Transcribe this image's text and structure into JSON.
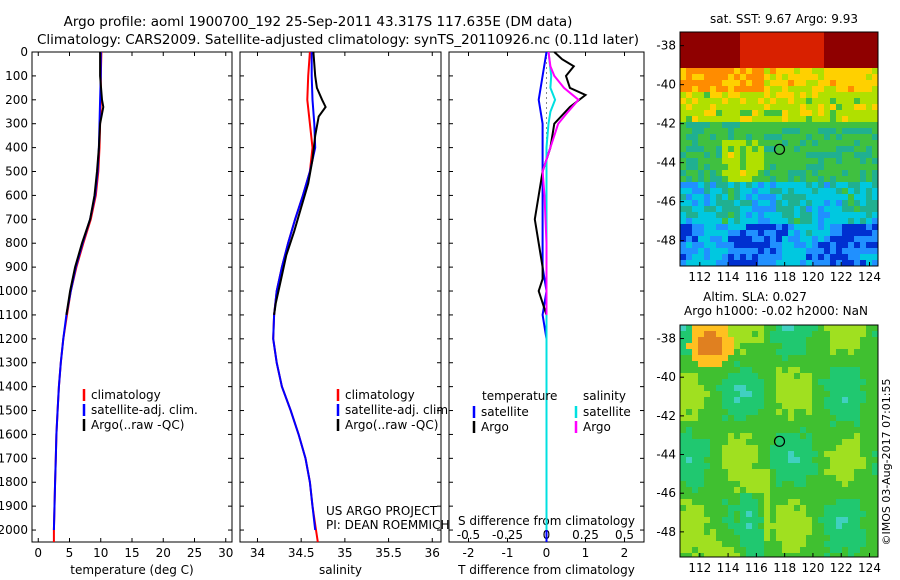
{
  "header": {
    "line1": "Argo profile: aoml 1900700_192 25-Sep-2011 43.317S 117.635E (DM data)",
    "line2": "Climatology: CARS2009. Satellite-adjusted climatology: synTS_20110926.nc (0.11d later)"
  },
  "credits": {
    "project": "US ARGO PROJECT",
    "pi": "PI: DEAN ROEMMICH",
    "stamp": "©IMOS 03-Aug-2017 07:01:55"
  },
  "maps": {
    "sst_title": "sat. SST: 9.67 Argo: 9.93",
    "sla_title1": "Altim. SLA: 0.027",
    "sla_title2": "Argo h1000: -0.02 h2000: NaN",
    "lat_ticks": [
      -38,
      -40,
      -42,
      -44,
      -46,
      -48
    ],
    "lon_ticks": [
      112,
      114,
      116,
      118,
      120,
      122,
      124
    ],
    "float_lon": 117.635,
    "float_lat": -43.317,
    "sst_colors": [
      "#8f0000",
      "#d82000",
      "#ff8c00",
      "#ffd000",
      "#b0e000",
      "#40c040",
      "#20b090",
      "#00c8e0",
      "#2090ff",
      "#0030d0"
    ],
    "sla_colors": [
      "#e08020",
      "#ffc020",
      "#e8e820",
      "#a0e020",
      "#40c030",
      "#20c870",
      "#40d0c0",
      "#40b0ff",
      "#2050e0"
    ]
  },
  "colors": {
    "climatology": "#ff0000",
    "satellite": "#0000ff",
    "argo": "#000000",
    "sal_satellite": "#00e0e0",
    "sal_argo": "#ff00ff"
  },
  "chart_data": [
    {
      "type": "line",
      "xlabel": "temperature (deg C)",
      "xlim": [
        -1,
        31
      ],
      "xticks": [
        0,
        5,
        10,
        15,
        20,
        25,
        30
      ],
      "ylim": [
        0,
        2050
      ],
      "yticks": [
        0,
        100,
        200,
        300,
        400,
        500,
        600,
        700,
        800,
        900,
        1000,
        1100,
        1200,
        1300,
        1400,
        1500,
        1600,
        1700,
        1800,
        1900,
        2000
      ],
      "legend": [
        "climatology",
        "satellite-adj. clim.",
        "Argo(..raw -QC)"
      ],
      "series": [
        {
          "name": "climatology",
          "points": [
            [
              10.1,
              0
            ],
            [
              10.0,
              100
            ],
            [
              10.0,
              200
            ],
            [
              9.9,
              300
            ],
            [
              9.8,
              400
            ],
            [
              9.6,
              500
            ],
            [
              9.2,
              600
            ],
            [
              8.4,
              700
            ],
            [
              7.2,
              800
            ],
            [
              6.1,
              900
            ],
            [
              5.2,
              1000
            ],
            [
              4.6,
              1100
            ],
            [
              4.0,
              1200
            ],
            [
              3.6,
              1300
            ],
            [
              3.3,
              1400
            ],
            [
              3.1,
              1500
            ],
            [
              2.9,
              1600
            ],
            [
              2.8,
              1700
            ],
            [
              2.7,
              1800
            ],
            [
              2.6,
              1900
            ],
            [
              2.5,
              2000
            ],
            [
              2.5,
              2050
            ]
          ]
        },
        {
          "name": "satellite-adj. clim.",
          "points": [
            [
              10.0,
              0
            ],
            [
              10.0,
              100
            ],
            [
              9.9,
              200
            ],
            [
              9.8,
              300
            ],
            [
              9.7,
              400
            ],
            [
              9.5,
              500
            ],
            [
              9.1,
              600
            ],
            [
              8.3,
              700
            ],
            [
              7.1,
              800
            ],
            [
              6.0,
              900
            ],
            [
              5.2,
              1000
            ],
            [
              4.5,
              1100
            ],
            [
              4.0,
              1200
            ],
            [
              3.6,
              1300
            ],
            [
              3.3,
              1400
            ],
            [
              3.1,
              1500
            ],
            [
              2.9,
              1600
            ],
            [
              2.8,
              1700
            ],
            [
              2.7,
              1800
            ],
            [
              2.6,
              1900
            ],
            [
              2.5,
              2000
            ]
          ]
        },
        {
          "name": "Argo(..raw -QC)",
          "points": [
            [
              9.9,
              0
            ],
            [
              9.9,
              100
            ],
            [
              10.2,
              200
            ],
            [
              10.4,
              230
            ],
            [
              9.9,
              300
            ],
            [
              9.7,
              400
            ],
            [
              9.4,
              500
            ],
            [
              9.0,
              600
            ],
            [
              8.3,
              700
            ],
            [
              7.0,
              800
            ],
            [
              5.9,
              900
            ],
            [
              5.1,
              1000
            ],
            [
              4.5,
              1100
            ]
          ]
        }
      ]
    },
    {
      "type": "line",
      "xlabel": "salinity",
      "xlim": [
        33.8,
        36.1
      ],
      "xticks": [
        34,
        34.5,
        35,
        35.5,
        36
      ],
      "ylim": [
        0,
        2050
      ],
      "legend": [
        "climatology",
        "satellite-adj. clim.",
        "Argo(..raw -QC)"
      ],
      "series": [
        {
          "name": "climatology",
          "points": [
            [
              34.6,
              0
            ],
            [
              34.58,
              100
            ],
            [
              34.57,
              200
            ],
            [
              34.6,
              300
            ],
            [
              34.63,
              400
            ],
            [
              34.6,
              500
            ],
            [
              34.52,
              600
            ],
            [
              34.43,
              700
            ],
            [
              34.35,
              800
            ],
            [
              34.28,
              900
            ],
            [
              34.22,
              1000
            ],
            [
              34.19,
              1100
            ],
            [
              34.18,
              1200
            ],
            [
              34.22,
              1300
            ],
            [
              34.28,
              1400
            ],
            [
              34.38,
              1500
            ],
            [
              34.47,
              1600
            ],
            [
              34.55,
              1700
            ],
            [
              34.6,
              1800
            ],
            [
              34.63,
              1900
            ],
            [
              34.67,
              2000
            ],
            [
              34.69,
              2050
            ]
          ]
        },
        {
          "name": "satellite-adj. clim.",
          "points": [
            [
              34.62,
              0
            ],
            [
              34.62,
              100
            ],
            [
              34.63,
              200
            ],
            [
              34.65,
              300
            ],
            [
              34.66,
              400
            ],
            [
              34.6,
              500
            ],
            [
              34.52,
              600
            ],
            [
              34.43,
              700
            ],
            [
              34.35,
              800
            ],
            [
              34.28,
              900
            ],
            [
              34.22,
              1000
            ],
            [
              34.19,
              1100
            ],
            [
              34.18,
              1200
            ],
            [
              34.22,
              1300
            ],
            [
              34.28,
              1400
            ],
            [
              34.38,
              1500
            ],
            [
              34.47,
              1600
            ],
            [
              34.55,
              1700
            ],
            [
              34.6,
              1800
            ],
            [
              34.63,
              1900
            ],
            [
              34.66,
              2000
            ]
          ]
        },
        {
          "name": "Argo(..raw -QC)",
          "points": [
            [
              34.64,
              0
            ],
            [
              34.66,
              100
            ],
            [
              34.68,
              150
            ],
            [
              34.74,
              200
            ],
            [
              34.78,
              230
            ],
            [
              34.7,
              270
            ],
            [
              34.66,
              350
            ],
            [
              34.63,
              450
            ],
            [
              34.58,
              550
            ],
            [
              34.5,
              650
            ],
            [
              34.42,
              750
            ],
            [
              34.33,
              850
            ],
            [
              34.27,
              950
            ],
            [
              34.21,
              1050
            ],
            [
              34.19,
              1100
            ]
          ]
        }
      ]
    },
    {
      "type": "line",
      "xlabel": "T difference from climatology",
      "xlabel2": "S difference from climatology",
      "xlim": [
        -2.5,
        2.5
      ],
      "xticks": [
        -2,
        -1,
        0,
        1,
        2
      ],
      "xticks2_labels": [
        "-0.5",
        "-0.25",
        "0",
        "0.25",
        "0.5"
      ],
      "ylim": [
        0,
        2050
      ],
      "legend_headers": [
        "temperature",
        "salinity"
      ],
      "legend": [
        "satellite",
        "Argo",
        "satellite",
        "Argo"
      ],
      "series": [
        {
          "name": "temperature satellite",
          "points": [
            [
              0.0,
              0
            ],
            [
              -0.1,
              100
            ],
            [
              -0.2,
              200
            ],
            [
              -0.1,
              300
            ],
            [
              -0.1,
              400
            ],
            [
              -0.1,
              500
            ],
            [
              -0.1,
              600
            ],
            [
              -0.1,
              700
            ],
            [
              -0.1,
              800
            ],
            [
              -0.1,
              900
            ],
            [
              0.0,
              1000
            ],
            [
              -0.1,
              1100
            ],
            [
              0.0,
              1200
            ],
            [
              0.0,
              1400
            ],
            [
              0.0,
              1700
            ],
            [
              0.0,
              2000
            ],
            [
              0.0,
              2050
            ]
          ]
        },
        {
          "name": "temperature Argo",
          "points": [
            [
              0.2,
              0
            ],
            [
              0.4,
              30
            ],
            [
              0.7,
              60
            ],
            [
              0.5,
              100
            ],
            [
              0.6,
              150
            ],
            [
              1.0,
              180
            ],
            [
              0.6,
              230
            ],
            [
              0.2,
              300
            ],
            [
              0.1,
              400
            ],
            [
              -0.1,
              500
            ],
            [
              -0.2,
              600
            ],
            [
              -0.3,
              700
            ],
            [
              -0.2,
              800
            ],
            [
              -0.1,
              900
            ],
            [
              -0.1,
              950
            ],
            [
              -0.2,
              1000
            ],
            [
              0.0,
              1100
            ]
          ]
        },
        {
          "name": "salinity satellite",
          "points": [
            [
              0.05,
              0
            ],
            [
              0.12,
              100
            ],
            [
              0.1,
              150
            ],
            [
              0.22,
              200
            ],
            [
              0.1,
              250
            ],
            [
              0.05,
              300
            ],
            [
              0.0,
              400
            ],
            [
              0.0,
              600
            ],
            [
              0.0,
              1000
            ],
            [
              0.0,
              1400
            ],
            [
              0.0,
              1800
            ],
            [
              0.0,
              2000
            ]
          ]
        },
        {
          "name": "salinity Argo",
          "points": [
            [
              0.05,
              0
            ],
            [
              0.1,
              60
            ],
            [
              0.2,
              100
            ],
            [
              0.45,
              150
            ],
            [
              0.82,
              200
            ],
            [
              0.55,
              250
            ],
            [
              0.3,
              300
            ],
            [
              0.1,
              400
            ],
            [
              -0.1,
              500
            ],
            [
              -0.05,
              600
            ],
            [
              0.0,
              800
            ],
            [
              0.0,
              1100
            ]
          ]
        }
      ]
    }
  ]
}
